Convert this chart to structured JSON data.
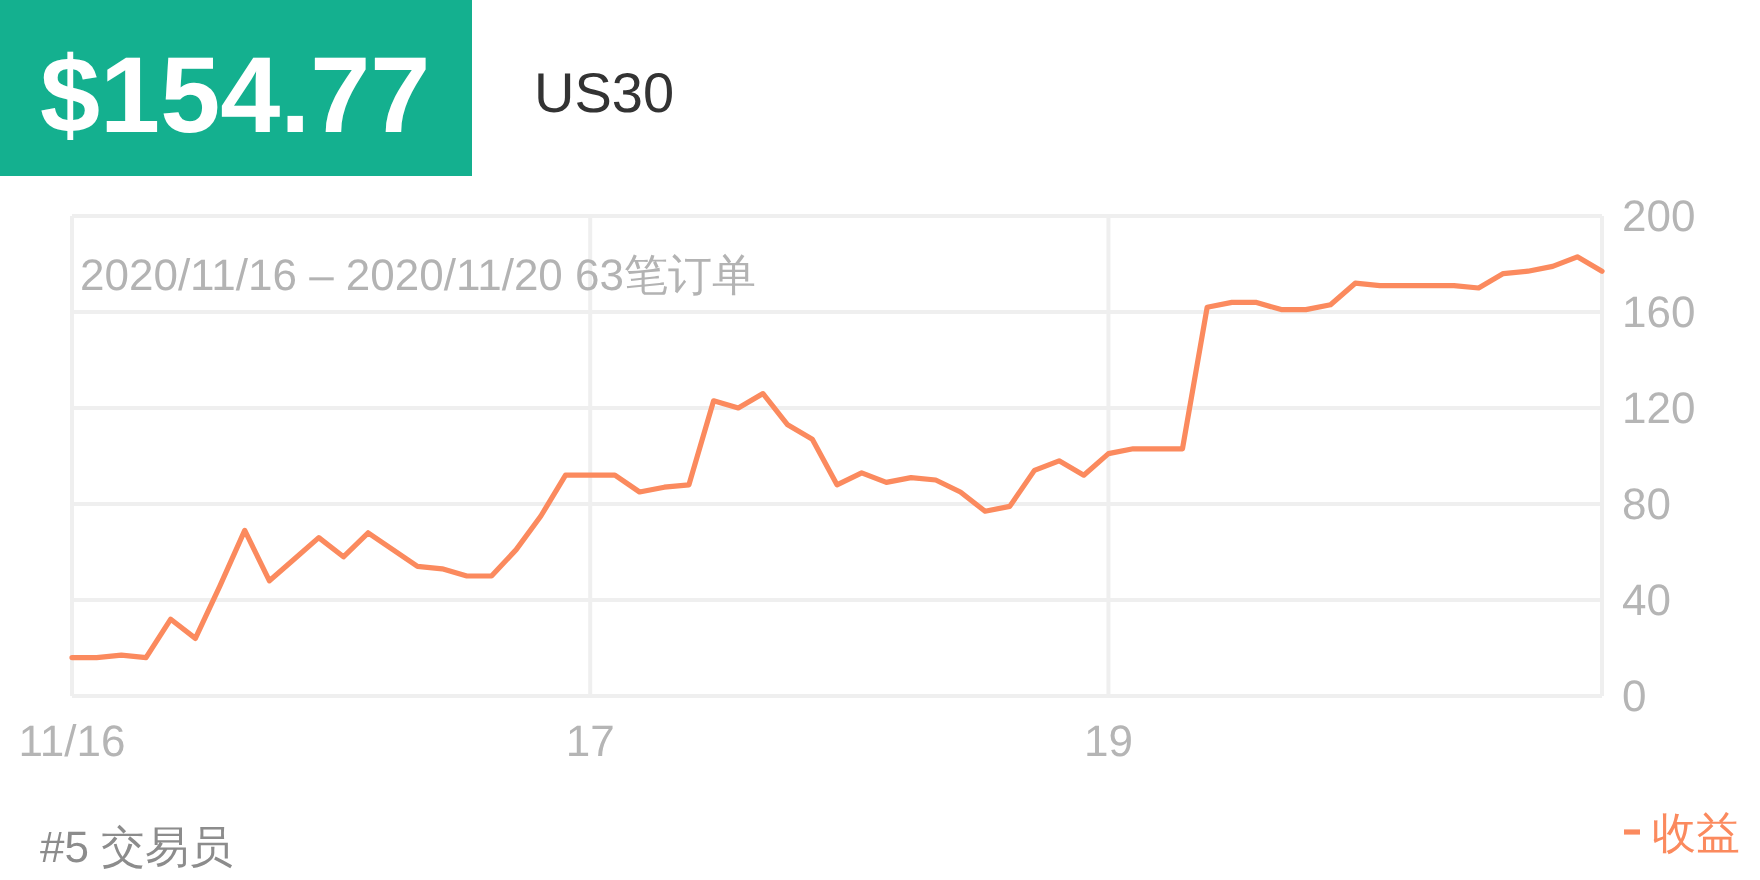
{
  "chart_data": {
    "type": "line",
    "title": "$154.77",
    "subtitle": "US30",
    "annotations": [
      "2020/11/16 – 2020/11/20 63笔订单",
      "#5 交易员"
    ],
    "categories": [
      "11/16",
      null,
      null,
      null,
      null,
      null,
      null,
      null,
      null,
      null,
      null,
      null,
      null,
      null,
      null,
      null,
      null,
      null,
      null,
      null,
      null,
      "17",
      null,
      null,
      null,
      null,
      null,
      null,
      null,
      null,
      null,
      null,
      null,
      null,
      null,
      null,
      null,
      null,
      null,
      null,
      null,
      null,
      "19",
      null,
      null,
      null,
      null,
      null,
      null,
      null,
      null,
      null,
      null,
      null,
      null,
      null,
      null,
      null,
      null,
      null,
      null,
      null,
      null
    ],
    "series": [
      {
        "name": "收益",
        "color": "#fb8a5e",
        "values": [
          16,
          16,
          17,
          16,
          32,
          24,
          46,
          69,
          48,
          57,
          66,
          58,
          68,
          61,
          54,
          53,
          50,
          50,
          61,
          75,
          92,
          92,
          92,
          85,
          87,
          88,
          123,
          120,
          126,
          113,
          107,
          88,
          93,
          89,
          91,
          90,
          85,
          77,
          79,
          94,
          98,
          92,
          101,
          103,
          103,
          103,
          162,
          164,
          164,
          161,
          161,
          163,
          172,
          171,
          171,
          171,
          171,
          170,
          176,
          177,
          179,
          183,
          177
        ]
      }
    ],
    "ylim": [
      0,
      200
    ],
    "yticks": [
      0,
      40,
      80,
      120,
      160,
      200
    ],
    "grid": true,
    "legend": "bottom right",
    "line_style": "solid"
  }
}
